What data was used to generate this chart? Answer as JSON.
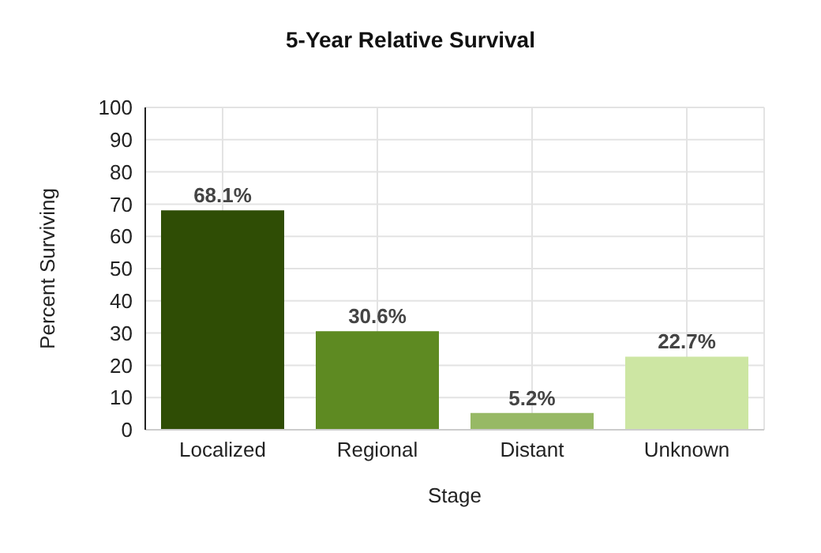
{
  "chart_data": {
    "type": "bar",
    "title": "5-Year Relative Survival",
    "xlabel": "Stage",
    "ylabel": "Percent Surviving",
    "categories": [
      "Localized",
      "Regional",
      "Distant",
      "Unknown"
    ],
    "values": [
      68.1,
      30.6,
      5.2,
      22.7
    ],
    "colors": [
      "#2f4d05",
      "#5e8a22",
      "#97b965",
      "#cde6a3"
    ],
    "value_labels": [
      "68.1%",
      "30.6%",
      "5.2%",
      "22.7%"
    ],
    "ylim": [
      0,
      100
    ],
    "yticks": [
      0,
      10,
      20,
      30,
      40,
      50,
      60,
      70,
      80,
      90,
      100
    ],
    "grid": true
  }
}
